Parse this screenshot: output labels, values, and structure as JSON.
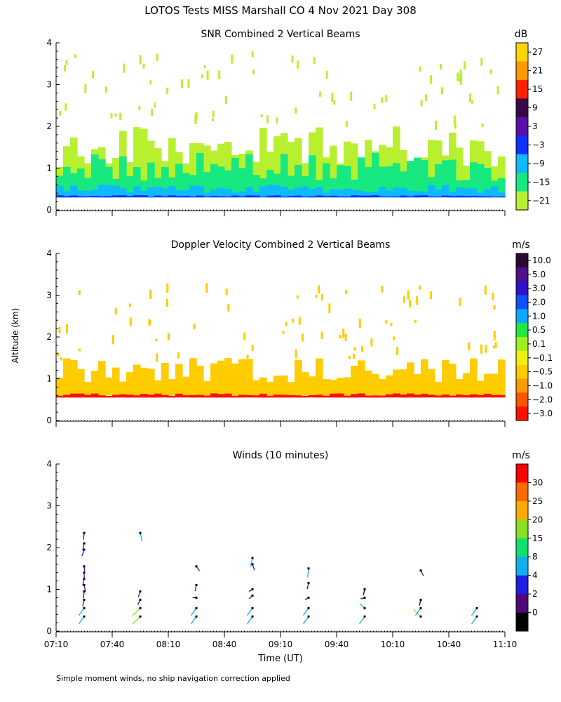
{
  "figure": {
    "title": "LOTOS Tests MISS Marshall CO   4 Nov 2021 Day 308",
    "ylabel": "Altitude (km)",
    "xlabel": "Time (UT)",
    "footnote": "Simple moment winds, no ship navigation correction applied",
    "x_ticks": [
      "07:10",
      "07:40",
      "08:10",
      "08:40",
      "09:10",
      "09:40",
      "10:10",
      "10:40",
      "11:10"
    ],
    "y_ticks": [
      "0",
      "1",
      "2",
      "3",
      "4"
    ]
  },
  "chart_data": [
    {
      "type": "heatmap",
      "title": "SNR Combined 2 Vertical Beams",
      "colorbar_unit": "dB",
      "colorbar_labels": [
        "27",
        "21",
        "15",
        "9",
        "3",
        "−3",
        "−9",
        "−15",
        "−21"
      ],
      "colorbar_colors": [
        "#ffd700",
        "#ff9900",
        "#ff2200",
        "#3a0848",
        "#5a10a8",
        "#1030ff",
        "#10b8ff",
        "#18e880",
        "#b8f030"
      ],
      "xlim": [
        "07:10",
        "11:10"
      ],
      "ylim": [
        0,
        4
      ],
      "layers": [
        {
          "level": "-21",
          "altitude_km": [
            0.5,
            2.0
          ],
          "color": "#b8f030"
        },
        {
          "level": "-15",
          "altitude_km": [
            0.3,
            1.4
          ],
          "color": "#18e880"
        },
        {
          "level": "-9",
          "altitude_km": [
            0.3,
            0.6
          ],
          "color": "#10b8ff"
        },
        {
          "level": "-3",
          "altitude_km": [
            0.3,
            0.35
          ],
          "color": "#1030ff"
        }
      ]
    },
    {
      "type": "heatmap",
      "title": "Doppler Velocity Combined 2 Vertical Beams",
      "colorbar_unit": "m/s",
      "colorbar_labels": [
        "10.0",
        "5.0",
        "3.0",
        "2.0",
        "1.0",
        "0.5",
        "0.1",
        "−0.1",
        "−0.5",
        "−1.0",
        "−2.0",
        "−3.0"
      ],
      "colorbar_colors": [
        "#2a0830",
        "#50108a",
        "#3010c8",
        "#1050ff",
        "#10a8ff",
        "#20e840",
        "#a0f020",
        "#f0f010",
        "#ffcc00",
        "#ff9900",
        "#ff5500",
        "#ff1000"
      ],
      "xlim": [
        "07:10",
        "11:10"
      ],
      "ylim": [
        0,
        4
      ],
      "layers": [
        {
          "level": "-0.5",
          "altitude_km": [
            0.6,
            1.5
          ],
          "color": "#ffcc00"
        },
        {
          "level": "-3.0",
          "altitude_km": [
            0.55,
            0.65
          ],
          "color": "#ff1000"
        }
      ]
    },
    {
      "type": "scatter",
      "title": "Winds (10 minutes)",
      "colorbar_unit": "m/s",
      "colorbar_labels": [
        "30",
        "25",
        "20",
        "15",
        "8",
        "4",
        "2",
        "0"
      ],
      "colorbar_colors": [
        "#ff0000",
        "#ff6a00",
        "#ffaa00",
        "#88e020",
        "#10e070",
        "#10b0f0",
        "#2020e0",
        "#500878",
        "#000000"
      ],
      "xlim": [
        "07:10",
        "11:10"
      ],
      "ylim": [
        0,
        4
      ],
      "profiles": [
        {
          "time": "07:25",
          "winds": [
            {
              "alt": 0.35,
              "speed": 14,
              "dir": 230
            },
            {
              "alt": 0.55,
              "speed": 14,
              "dir": 230
            },
            {
              "alt": 0.75,
              "speed": 3,
              "dir": 200
            },
            {
              "alt": 0.95,
              "speed": 3,
              "dir": 190
            },
            {
              "alt": 1.1,
              "speed": 3,
              "dir": 160
            },
            {
              "alt": 1.25,
              "speed": 3,
              "dir": 200
            },
            {
              "alt": 1.4,
              "speed": 3,
              "dir": 180
            },
            {
              "alt": 1.55,
              "speed": 3,
              "dir": 170
            },
            {
              "alt": 1.95,
              "speed": 4,
              "dir": 210
            },
            {
              "alt": 2.1,
              "speed": 4,
              "dir": 200
            },
            {
              "alt": 2.35,
              "speed": 3,
              "dir": 190
            }
          ]
        },
        {
          "time": "07:55",
          "winds": [
            {
              "alt": 0.35,
              "speed": 22,
              "dir": 240
            },
            {
              "alt": 0.55,
              "speed": 22,
              "dir": 240
            },
            {
              "alt": 0.75,
              "speed": 2,
              "dir": 220
            },
            {
              "alt": 0.95,
              "speed": 2,
              "dir": 210
            },
            {
              "alt": 2.35,
              "speed": 8,
              "dir": 160
            }
          ]
        },
        {
          "time": "08:25",
          "winds": [
            {
              "alt": 0.35,
              "speed": 14,
              "dir": 230
            },
            {
              "alt": 0.55,
              "speed": 14,
              "dir": 230
            },
            {
              "alt": 0.8,
              "speed": 1,
              "dir": 270
            },
            {
              "alt": 1.1,
              "speed": 2,
              "dir": 200
            },
            {
              "alt": 1.55,
              "speed": 3,
              "dir": 130
            }
          ]
        },
        {
          "time": "08:55",
          "winds": [
            {
              "alt": 0.35,
              "speed": 14,
              "dir": 230
            },
            {
              "alt": 0.55,
              "speed": 14,
              "dir": 230
            },
            {
              "alt": 0.85,
              "speed": 2,
              "dir": 240
            },
            {
              "alt": 1.0,
              "speed": 1,
              "dir": 250
            },
            {
              "alt": 1.6,
              "speed": 3,
              "dir": 150
            },
            {
              "alt": 1.75,
              "speed": 8,
              "dir": 200
            }
          ]
        },
        {
          "time": "09:25",
          "winds": [
            {
              "alt": 0.35,
              "speed": 14,
              "dir": 230
            },
            {
              "alt": 0.55,
              "speed": 14,
              "dir": 230
            },
            {
              "alt": 0.8,
              "speed": 2,
              "dir": 250
            },
            {
              "alt": 1.15,
              "speed": 2,
              "dir": 200
            },
            {
              "alt": 1.5,
              "speed": 8,
              "dir": 190
            }
          ]
        },
        {
          "time": "09:55",
          "winds": [
            {
              "alt": 0.35,
              "speed": 14,
              "dir": 230
            },
            {
              "alt": 0.55,
              "speed": 8,
              "dir": 300
            },
            {
              "alt": 0.8,
              "speed": 3,
              "dir": 260
            },
            {
              "alt": 1.0,
              "speed": 1,
              "dir": 200
            }
          ]
        },
        {
          "time": "10:25",
          "winds": [
            {
              "alt": 0.35,
              "speed": 20,
              "dir": 300
            },
            {
              "alt": 0.55,
              "speed": 14,
              "dir": 230
            },
            {
              "alt": 0.75,
              "speed": 1,
              "dir": 200
            },
            {
              "alt": 1.45,
              "speed": 3,
              "dir": 140
            }
          ]
        },
        {
          "time": "10:55",
          "winds": [
            {
              "alt": 0.35,
              "speed": 14,
              "dir": 230
            },
            {
              "alt": 0.55,
              "speed": 14,
              "dir": 230
            }
          ]
        }
      ]
    }
  ]
}
